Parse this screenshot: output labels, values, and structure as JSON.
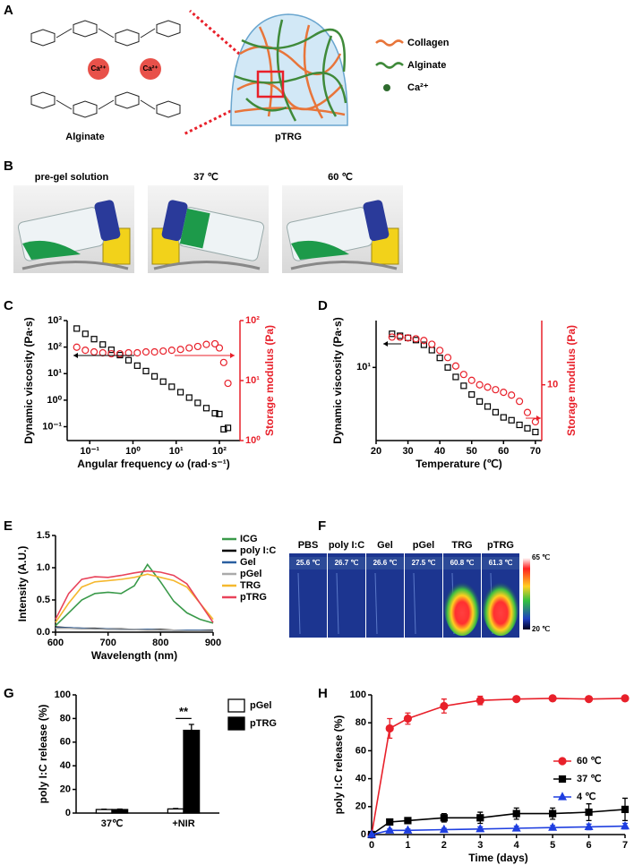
{
  "panel_labels": {
    "a": "A",
    "b": "B",
    "c": "C",
    "d": "D",
    "e": "E",
    "f": "F",
    "g": "G",
    "h": "H"
  },
  "panel_a": {
    "structure_label": "Alginate",
    "ion": "Ca²⁺",
    "gel_label": "pTRG",
    "legend": [
      "Collagen",
      "Alginate",
      "Ca²⁺"
    ]
  },
  "panel_b": {
    "conditions": [
      "pre-gel solution",
      "37 ℃",
      "60 ℃"
    ]
  },
  "panel_f": {
    "samples": [
      {
        "name": "PBS",
        "temperature": "25.6 ℃"
      },
      {
        "name": "poly I:C",
        "temperature": "26.7 ℃"
      },
      {
        "name": "Gel",
        "temperature": "26.6 ℃"
      },
      {
        "name": "pGel",
        "temperature": "27.5 ℃"
      },
      {
        "name": "TRG",
        "temperature": "60.8 ℃"
      },
      {
        "name": "pTRG",
        "temperature": "61.3 ℃"
      }
    ],
    "scale_max": "65 ℃",
    "scale_min": "20 ℃"
  },
  "chart_data": [
    {
      "type": "scatter",
      "xlog": true,
      "ylog": true,
      "y2log": true,
      "x": [
        0.05,
        0.079,
        0.126,
        0.2,
        0.316,
        0.5,
        0.79,
        1.26,
        2,
        3.16,
        5,
        7.9,
        12.6,
        20,
        31.6,
        50,
        79,
        100,
        126,
        158
      ],
      "xlim": [
        0.03,
        300
      ],
      "ylim": [
        0.03,
        1000
      ],
      "y2lim": [
        1,
        100
      ],
      "xticks": [
        {
          "value": 0.1,
          "label": "10⁻¹"
        },
        {
          "value": 1,
          "label": "10⁰"
        },
        {
          "value": 10,
          "label": "10¹"
        },
        {
          "value": 100,
          "label": "10²"
        }
      ],
      "yticks": [
        {
          "value": 0.1,
          "label": "10⁻¹"
        },
        {
          "value": 1,
          "label": "10⁰"
        },
        {
          "value": 10,
          "label": "10¹"
        },
        {
          "value": 100,
          "label": "10²"
        },
        {
          "value": 1000,
          "label": "10³"
        }
      ],
      "y2ticks": [
        {
          "value": 1,
          "label": "10⁰"
        },
        {
          "value": 10,
          "label": "10¹"
        },
        {
          "value": 100,
          "label": "10²"
        }
      ],
      "xlabel": "Angular frequency ω (rad·s⁻¹)",
      "ylabel": "Dynamic viscosity (Pa·s)",
      "y2label": "Storage modulus (Pa)",
      "y2color": "#e8202a",
      "series": [
        {
          "color": "#000000",
          "marker": "square-open",
          "values": [
            500,
            316,
            200,
            125,
            79,
            50,
            32,
            20,
            12.5,
            7.9,
            5,
            3.2,
            2,
            1.25,
            0.79,
            0.5,
            0.32,
            0.3,
            0.08,
            0.09
          ]
        },
        {
          "color": "#e8202a",
          "marker": "circle-open",
          "axis": "y2",
          "values": [
            36,
            32,
            30,
            29,
            28,
            28,
            29,
            29,
            30,
            30,
            31,
            32,
            33,
            35,
            37,
            40,
            41,
            35,
            20,
            9
          ]
        }
      ]
    },
    {
      "type": "scatter",
      "ylog": true,
      "y2log": true,
      "x": [
        25,
        27.5,
        30,
        32.5,
        35,
        37.5,
        40,
        42.5,
        45,
        47.5,
        50,
        52.5,
        55,
        57.5,
        60,
        62.5,
        65,
        67.5,
        70
      ],
      "xlim": [
        20,
        72
      ],
      "ylim": [
        1.8,
        30
      ],
      "y2lim": [
        3,
        40
      ],
      "xticks": [
        20,
        30,
        40,
        50,
        60,
        70
      ],
      "yticks": [
        {
          "value": 10,
          "label": "10¹"
        }
      ],
      "y2ticks": [
        10
      ],
      "xlabel": "Temperature (℃)",
      "ylabel": "Dynamic viscosity (Pa·s)",
      "y2label": "Storage modulus (Pa)",
      "y2color": "#e8202a",
      "series": [
        {
          "color": "#000000",
          "marker": "square-open",
          "values": [
            22,
            21,
            20,
            19,
            17,
            15,
            12.5,
            10,
            8,
            6.5,
            5.3,
            4.5,
            4,
            3.5,
            3.1,
            2.9,
            2.6,
            2.4,
            2.2
          ]
        },
        {
          "color": "#e8202a",
          "marker": "circle-open",
          "axis": "y2",
          "values": [
            28,
            28,
            27.5,
            27,
            26,
            24,
            21,
            18,
            15,
            12.5,
            11,
            10,
            9.5,
            9,
            8.5,
            8,
            7,
            5.5,
            4.5
          ]
        }
      ]
    },
    {
      "type": "line",
      "legend": "outside-right",
      "x": [
        600,
        625,
        650,
        675,
        700,
        725,
        750,
        775,
        800,
        825,
        850,
        875,
        900
      ],
      "xlim": [
        600,
        900
      ],
      "ylim": [
        0,
        1.5
      ],
      "xticks": [
        600,
        700,
        800,
        900
      ],
      "yticks": [
        {
          "value": 0,
          "label": "0.0"
        },
        0.5,
        {
          "value": 1,
          "label": "1.0"
        },
        1.5
      ],
      "xlabel": "Wavelength (nm)",
      "ylabel": "Intensity (A.U.)",
      "series": [
        {
          "name": "ICG",
          "color": "#3a9a4a",
          "values": [
            0.1,
            0.3,
            0.5,
            0.6,
            0.62,
            0.6,
            0.72,
            1.05,
            0.78,
            0.48,
            0.3,
            0.2,
            0.14
          ]
        },
        {
          "name": "poly I:C",
          "color": "#000000",
          "values": [
            0.08,
            0.07,
            0.06,
            0.06,
            0.05,
            0.05,
            0.04,
            0.04,
            0.04,
            0.03,
            0.03,
            0.03,
            0.03
          ]
        },
        {
          "name": "Gel",
          "color": "#2a5fa0",
          "values": [
            0.07,
            0.07,
            0.06,
            0.05,
            0.05,
            0.04,
            0.04,
            0.04,
            0.03,
            0.03,
            0.03,
            0.03,
            0.02
          ]
        },
        {
          "name": "pGel",
          "color": "#aaaaaa",
          "values": [
            0.06,
            0.06,
            0.05,
            0.05,
            0.04,
            0.04,
            0.04,
            0.03,
            0.03,
            0.03,
            0.02,
            0.02,
            0.02
          ]
        },
        {
          "name": "TRG",
          "color": "#f5b82e",
          "values": [
            0.15,
            0.45,
            0.7,
            0.78,
            0.8,
            0.82,
            0.85,
            0.9,
            0.85,
            0.8,
            0.7,
            0.45,
            0.2
          ]
        },
        {
          "name": "pTRG",
          "color": "#e8435a",
          "values": [
            0.2,
            0.6,
            0.82,
            0.86,
            0.85,
            0.88,
            0.92,
            0.95,
            0.93,
            0.88,
            0.75,
            0.45,
            0.15
          ]
        }
      ]
    },
    {
      "type": "bar",
      "legend": "outside-right",
      "categories": [
        "37℃",
        "+NIR"
      ],
      "ylim": [
        0,
        100
      ],
      "yticks": [
        0,
        20,
        40,
        60,
        80,
        100
      ],
      "ylabel": "poly I:C release (%)",
      "annotation": "**",
      "series": [
        {
          "name": "pGel",
          "color": "#ffffff",
          "values": [
            3,
            3.5
          ],
          "errors": [
            0.3,
            0.4
          ]
        },
        {
          "name": "pTRG",
          "color": "#000000",
          "values": [
            3,
            70
          ],
          "errors": [
            0.4,
            5
          ]
        }
      ]
    },
    {
      "type": "line",
      "legend": "right",
      "x": [
        0,
        0.5,
        1,
        2,
        3,
        4,
        5,
        6,
        7
      ],
      "xlim": [
        0,
        7
      ],
      "ylim": [
        0,
        100
      ],
      "xticks": [
        0,
        1,
        2,
        3,
        4,
        5,
        6,
        7
      ],
      "yticks": [
        0,
        20,
        40,
        60,
        80,
        100
      ],
      "xlabel": "Time (days)",
      "ylabel": "poly I:C release (%)",
      "series": [
        {
          "name": "60 ℃",
          "color": "#e8202a",
          "marker": "circle",
          "values": [
            0,
            76,
            83,
            92,
            96,
            97,
            97.5,
            97,
            97.5
          ],
          "errors": [
            0,
            7,
            4,
            5,
            3,
            1,
            1,
            1,
            1
          ]
        },
        {
          "name": "37 ℃",
          "color": "#000000",
          "marker": "square",
          "values": [
            0,
            9,
            10,
            12,
            12,
            15,
            15,
            16,
            18
          ],
          "errors": [
            0,
            1,
            1.5,
            3,
            4,
            4,
            4,
            6,
            8
          ]
        },
        {
          "name": "4 ℃",
          "color": "#1f3fe0",
          "marker": "triangle",
          "values": [
            0,
            3,
            3,
            3.5,
            4,
            4.5,
            5,
            5.5,
            6
          ],
          "errors": [
            0,
            1,
            1,
            1,
            1.5,
            1.5,
            1.5,
            2,
            2
          ]
        }
      ]
    }
  ]
}
